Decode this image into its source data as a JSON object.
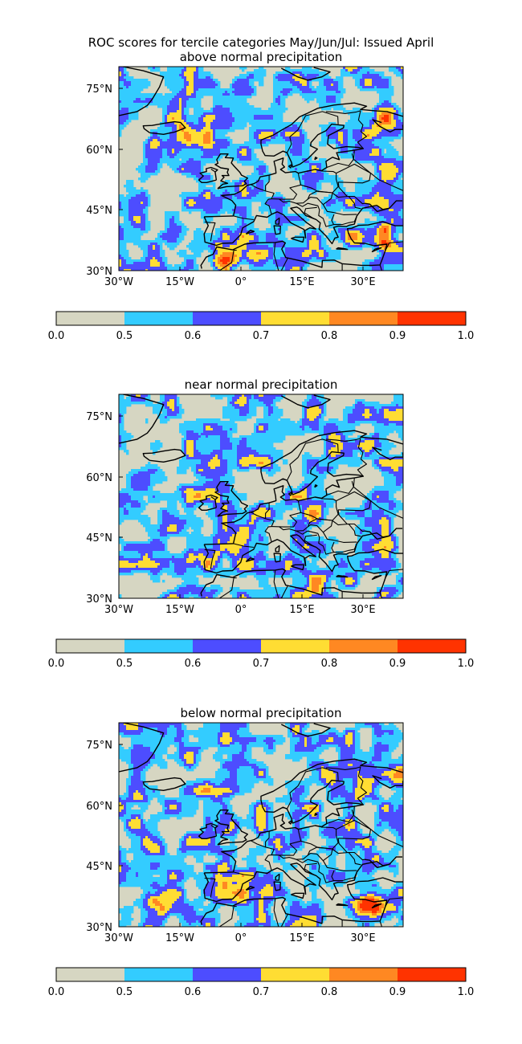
{
  "suptitle": "ROC scores for tercile categories May/Jun/Jul: Issued April",
  "x_ticks": [
    "30°W",
    "15°W",
    "0°",
    "15°E",
    "30°E"
  ],
  "y_ticks": [
    "75°N",
    "60°N",
    "45°N",
    "30°N"
  ],
  "colorbar_ticks": [
    "0.0",
    "0.5",
    "0.6",
    "0.7",
    "0.8",
    "0.9",
    "1.0"
  ],
  "levels": [
    0.0,
    0.5,
    0.6,
    0.7,
    0.8,
    0.9,
    1.0
  ],
  "colors": [
    "#d6d6c2",
    "#33ccff",
    "#4d4dff",
    "#ffdd33",
    "#ff8822",
    "#ff3300"
  ],
  "panels": [
    {
      "title": "above normal precipitation",
      "seed": 11,
      "hotspots": [
        [
          -4,
          33,
          0.95
        ],
        [
          33,
          38,
          0.9
        ],
        [
          36,
          67,
          0.9
        ],
        [
          -15,
          63,
          0.8
        ],
        [
          14,
          77,
          0.7
        ]
      ]
    },
    {
      "title": "near normal precipitation",
      "seed": 29,
      "hotspots": [
        [
          -12,
          40,
          0.6
        ],
        [
          16,
          50,
          0.55
        ],
        [
          20,
          36,
          0.6
        ]
      ]
    },
    {
      "title": "below normal precipitation",
      "seed": 47,
      "hotspots": [
        [
          32,
          36,
          1.3
        ],
        [
          -20,
          37,
          0.9
        ],
        [
          36,
          67,
          0.9
        ],
        [
          -5,
          39,
          0.6
        ],
        [
          25,
          62,
          0.55
        ]
      ]
    }
  ],
  "chart_data": {
    "type": "heatmap",
    "title": "ROC scores for tercile categories May/Jun/Jul: Issued April",
    "x_extent_deg": [
      -30,
      40
    ],
    "y_extent_deg": [
      30,
      80
    ],
    "x_ticks_deg": [
      -30,
      -15,
      0,
      15,
      30
    ],
    "y_ticks_deg": [
      30,
      45,
      60,
      75
    ],
    "bins": [
      0.0,
      0.5,
      0.6,
      0.7,
      0.8,
      0.9,
      1.0
    ],
    "colormap": [
      "#d6d6c2",
      "#33ccff",
      "#4d4dff",
      "#ffdd33",
      "#ff8822",
      "#ff3300"
    ],
    "subplots": [
      "above normal precipitation",
      "near normal precipitation",
      "below normal precipitation"
    ]
  }
}
